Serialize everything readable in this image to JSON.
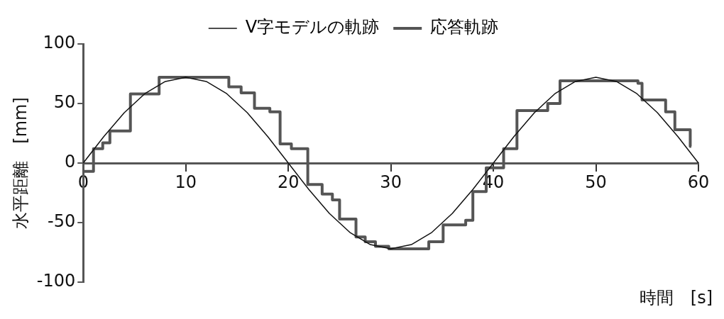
{
  "chart_data": {
    "type": "line",
    "xlabel": "時間　[s]",
    "ylabel": "水平距離　[mm]",
    "xlim": [
      0,
      60
    ],
    "xticks": [
      0,
      10,
      20,
      30,
      40,
      50,
      60
    ],
    "ylim": [
      -100,
      100
    ],
    "yticks": [
      -100,
      -50,
      0,
      50,
      100
    ],
    "grid": false,
    "legend": "top",
    "marker": "none",
    "series": [
      {
        "name": "V字モデルの軌跡",
        "color": "#111111",
        "x": [
          0,
          2,
          4,
          6,
          8,
          10,
          12,
          14,
          16,
          18,
          20,
          22,
          24,
          26,
          28,
          30,
          32,
          34,
          36,
          38,
          40,
          42,
          44,
          46,
          48,
          50,
          52,
          54,
          56,
          58,
          60
        ],
        "values": [
          0,
          22.2,
          42.3,
          58.2,
          68.5,
          72,
          68.5,
          58.2,
          42.3,
          22.2,
          0,
          -22.2,
          -42.3,
          -58.2,
          -68.5,
          -72,
          -68.5,
          -58.2,
          -42.3,
          -22.2,
          0,
          22.2,
          42.3,
          58.2,
          68.5,
          72,
          68.5,
          58.2,
          42.3,
          22.2,
          0
        ]
      },
      {
        "name": "応答軌跡",
        "type": "step",
        "color": "#555555",
        "x": [
          0,
          1.0,
          1.9,
          2.6,
          4.6,
          7.4,
          14.2,
          15.4,
          16.7,
          18.2,
          19.2,
          20.3,
          21.9,
          23.3,
          24.3,
          25.0,
          26.6,
          27.5,
          28.5,
          29.8,
          33.7,
          35.1,
          37.3,
          38.0,
          39.3,
          41.0,
          42.3,
          45.3,
          46.5,
          54.1,
          54.5,
          56.8,
          57.7,
          59.2,
          59.3
        ],
        "values": [
          -7,
          12,
          17,
          27,
          58,
          72,
          64,
          59,
          46,
          43,
          16,
          12,
          -18,
          -26,
          -31,
          -47,
          -62,
          -66,
          -70,
          -72,
          -66,
          -52,
          -48,
          -24,
          -4,
          12,
          44,
          50,
          69,
          67,
          53,
          43,
          28,
          14,
          14
        ]
      }
    ]
  }
}
